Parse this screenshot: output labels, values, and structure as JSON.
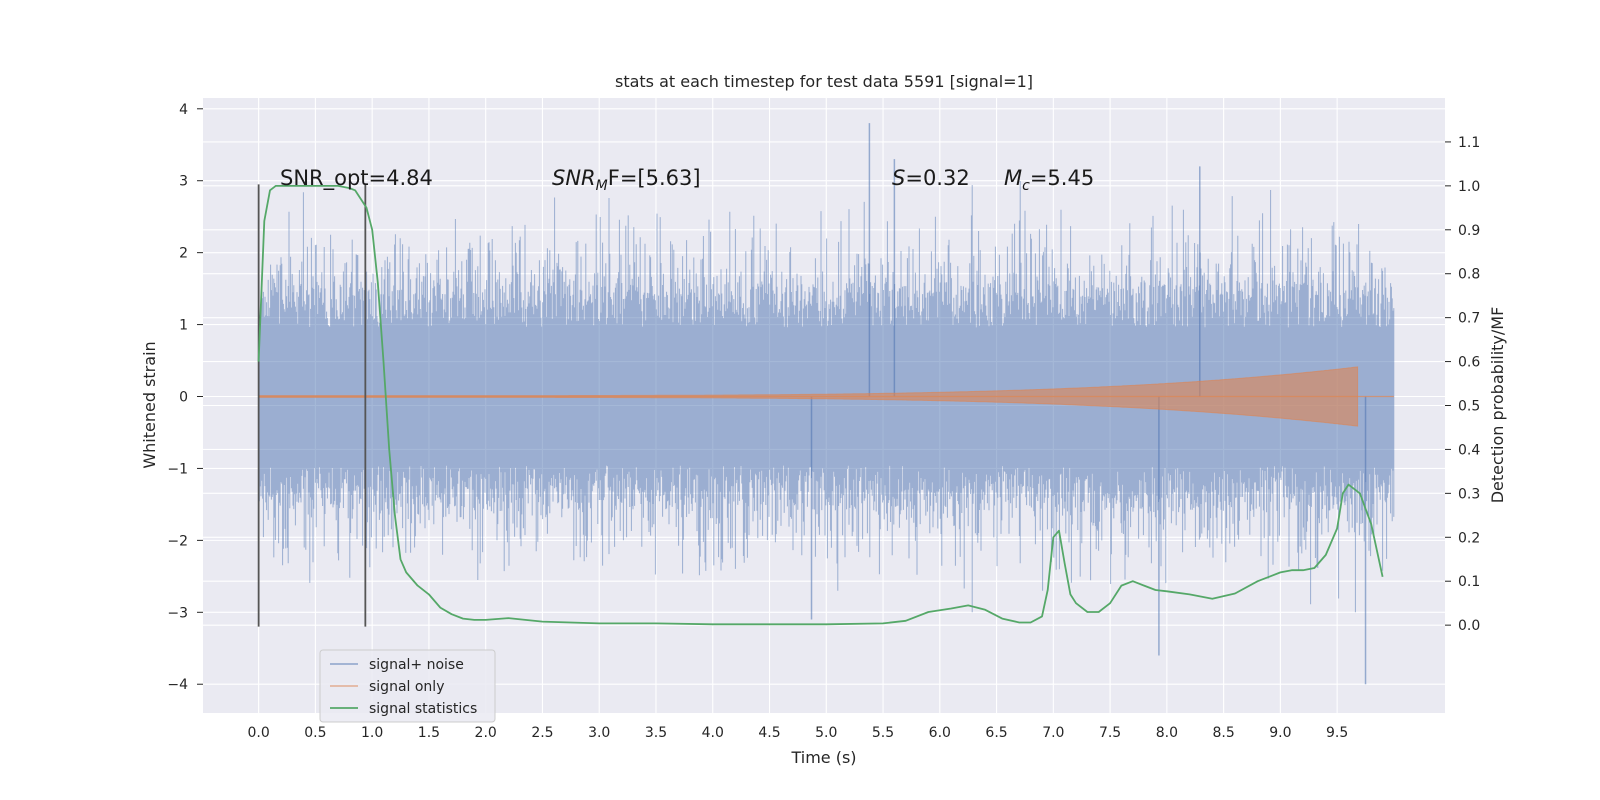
{
  "chart_data": {
    "type": "line",
    "title": "stats at each timestep for test data 5591 [signal=1]",
    "xlabel": "Time (s)",
    "ylabel_left": "Whitened strain",
    "ylabel_right": "Detection probability/MF",
    "xlim": [
      -0.49,
      10.45
    ],
    "ylim_left": [
      -4.4,
      4.15
    ],
    "ylim_right": [
      -0.2,
      1.2
    ],
    "xticks": [
      "0.0",
      "0.5",
      "1.0",
      "1.5",
      "2.0",
      "2.5",
      "3.0",
      "3.5",
      "4.0",
      "4.5",
      "5.0",
      "5.5",
      "6.0",
      "6.5",
      "7.0",
      "7.5",
      "8.0",
      "8.5",
      "9.0",
      "9.5"
    ],
    "yticks_left": [
      "4",
      "3",
      "2",
      "1",
      "0",
      "−1",
      "−2",
      "−3",
      "−4"
    ],
    "yticks_right": [
      "1.1",
      "1.0",
      "0.9",
      "0.8",
      "0.7",
      "0.6",
      "0.5",
      "0.4",
      "0.3",
      "0.2",
      "0.1",
      "0.0"
    ],
    "grid": true,
    "legend_position": "bottom-left",
    "annotations": {
      "snr_opt": "SNR_opt=4.84",
      "snr_mf_base": "SNR",
      "snr_mf_sub": "M",
      "snr_mf_rest": "F=[5.63]",
      "s_sym": "S",
      "s_val": "=0.32",
      "mc_base": "M",
      "mc_sub": "c",
      "mc_val": "=5.45"
    },
    "window_markers_x": [
      0.0,
      0.94
    ],
    "series": [
      {
        "name": "signal+ noise",
        "color": "#4c72b0",
        "axis": "left",
        "x_range": [
          0.0,
          10.0
        ],
        "typical_envelope": [
          -1.6,
          1.6
        ],
        "notable_spikes": [
          {
            "x": 5.38,
            "y": 3.8
          },
          {
            "x": 8.29,
            "y": 3.2
          },
          {
            "x": 5.6,
            "y": 3.3
          },
          {
            "x": 7.93,
            "y": -3.6
          },
          {
            "x": 9.75,
            "y": -4.0
          },
          {
            "x": 4.87,
            "y": -3.1
          }
        ]
      },
      {
        "name": "signal only",
        "color": "#dd8452",
        "axis": "left",
        "x_range": [
          0.0,
          9.68
        ],
        "peak_amplitude": 0.4
      },
      {
        "name": "signal statistics",
        "color": "#55a868",
        "axis": "right",
        "x": [
          0.0,
          0.05,
          0.1,
          0.15,
          0.2,
          0.3,
          0.4,
          0.5,
          0.6,
          0.7,
          0.8,
          0.85,
          0.9,
          0.95,
          1.0,
          1.05,
          1.1,
          1.15,
          1.2,
          1.25,
          1.3,
          1.4,
          1.5,
          1.6,
          1.7,
          1.8,
          1.9,
          2.0,
          2.2,
          2.5,
          3.0,
          3.5,
          4.0,
          4.5,
          5.0,
          5.5,
          5.7,
          5.9,
          6.1,
          6.25,
          6.4,
          6.55,
          6.7,
          6.8,
          6.9,
          6.95,
          7.0,
          7.05,
          7.1,
          7.15,
          7.2,
          7.3,
          7.4,
          7.5,
          7.6,
          7.7,
          7.8,
          7.9,
          8.0,
          8.2,
          8.4,
          8.6,
          8.8,
          9.0,
          9.1,
          9.2,
          9.3,
          9.4,
          9.5,
          9.55,
          9.6,
          9.7,
          9.8,
          9.9
        ],
        "y": [
          0.6,
          0.92,
          0.99,
          1.0,
          1.0,
          1.0,
          1.0,
          1.0,
          1.0,
          1.0,
          0.995,
          0.99,
          0.97,
          0.95,
          0.9,
          0.78,
          0.6,
          0.4,
          0.25,
          0.15,
          0.12,
          0.09,
          0.07,
          0.04,
          0.025,
          0.015,
          0.012,
          0.012,
          0.016,
          0.008,
          0.004,
          0.004,
          0.002,
          0.002,
          0.002,
          0.004,
          0.01,
          0.03,
          0.038,
          0.045,
          0.035,
          0.015,
          0.006,
          0.006,
          0.02,
          0.08,
          0.2,
          0.215,
          0.14,
          0.07,
          0.05,
          0.03,
          0.03,
          0.05,
          0.09,
          0.1,
          0.09,
          0.08,
          0.077,
          0.07,
          0.06,
          0.072,
          0.1,
          0.12,
          0.125,
          0.125,
          0.13,
          0.16,
          0.22,
          0.3,
          0.32,
          0.3,
          0.23,
          0.11
        ]
      }
    ]
  }
}
